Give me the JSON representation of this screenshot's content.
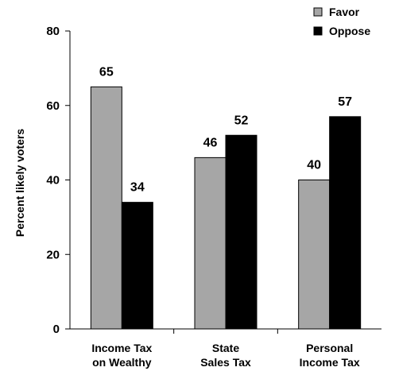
{
  "chart_data": {
    "type": "bar",
    "title": "",
    "xlabel": "",
    "ylabel": "Percent likely voters",
    "ylim": [
      0,
      80
    ],
    "yticks": [
      0,
      20,
      40,
      60,
      80
    ],
    "grid": false,
    "legend_position": "top-right",
    "categories": [
      [
        "Income Tax",
        "on Wealthy"
      ],
      [
        "State",
        "Sales Tax"
      ],
      [
        "Personal",
        "Income Tax"
      ]
    ],
    "series": [
      {
        "name": "Favor",
        "color": "#a6a6a6",
        "values": [
          65,
          46,
          40
        ]
      },
      {
        "name": "Oppose",
        "color": "#000000",
        "values": [
          34,
          52,
          57
        ]
      }
    ]
  }
}
